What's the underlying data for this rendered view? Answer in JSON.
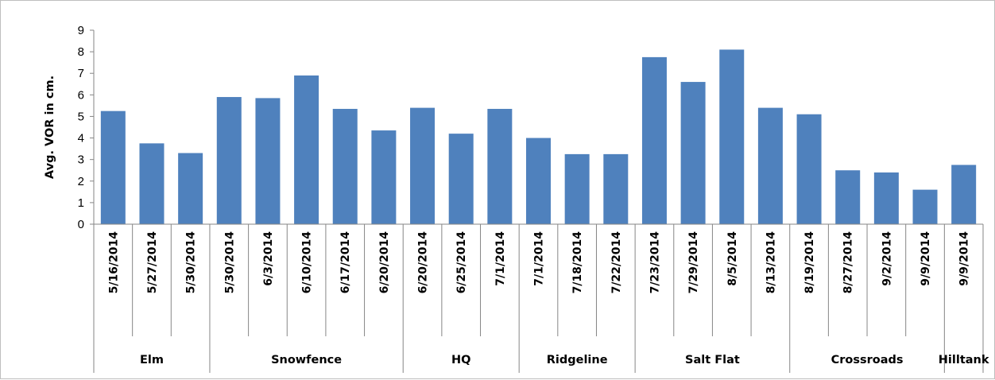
{
  "chart_data": {
    "type": "bar",
    "title": "",
    "xlabel": "",
    "ylabel": "Avg. VOR in cm.",
    "ylim": [
      0,
      9
    ],
    "yticks": [
      0,
      1,
      2,
      3,
      4,
      5,
      6,
      7,
      8,
      9
    ],
    "bar_color": "#4f81bd",
    "grid": false,
    "legend": "none",
    "categories": [
      "5/16/2014",
      "5/27/2014",
      "5/30/2014",
      "5/30/2014",
      "6/3/2014",
      "6/10/2014",
      "6/17/2014",
      "6/20/2014",
      "6/20/2014",
      "6/25/2014",
      "7/1/2014",
      "7/1/2014",
      "7/18/2014",
      "7/22/2014",
      "7/23/2014",
      "7/29/2014",
      "8/5/2014",
      "8/13/2014",
      "8/19/2014",
      "8/27/2014",
      "9/2/2014",
      "9/9/2014",
      "9/9/2014"
    ],
    "values": [
      5.25,
      3.75,
      3.3,
      5.9,
      5.85,
      6.9,
      5.35,
      4.35,
      5.4,
      4.2,
      5.35,
      4.0,
      3.25,
      3.25,
      7.75,
      6.6,
      8.1,
      5.4,
      5.1,
      2.5,
      2.4,
      1.6,
      2.75
    ],
    "groups": [
      {
        "name": "Elm",
        "count": 3
      },
      {
        "name": "Snowfence",
        "count": 5
      },
      {
        "name": "HQ",
        "count": 3
      },
      {
        "name": "Ridgeline",
        "count": 3
      },
      {
        "name": "Salt Flat",
        "count": 4
      },
      {
        "name": "Crossroads",
        "count": 4
      },
      {
        "name": "Hilltank",
        "count": 1
      }
    ]
  }
}
